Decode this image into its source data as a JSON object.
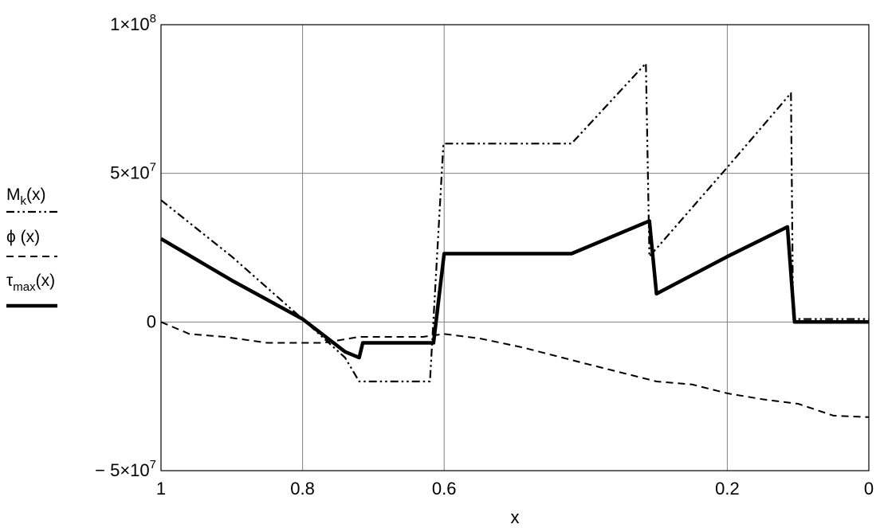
{
  "chart_data": {
    "type": "line",
    "xlabel": "x",
    "xlim": [
      1,
      0
    ],
    "ylim": [
      -50000000,
      100000000
    ],
    "grid": true,
    "legend_position": "left",
    "x_ticks": [
      {
        "value": 1,
        "label": "1"
      },
      {
        "value": 0.8,
        "label": "0.8"
      },
      {
        "value": 0.6,
        "label": "0.6"
      },
      {
        "value": 0.2,
        "label": "0.2"
      },
      {
        "value": 0,
        "label": "0"
      }
    ],
    "x_gridlines": [
      1,
      0.8,
      0.6,
      0.2,
      0
    ],
    "y_ticks": [
      {
        "value": 100000000,
        "mantissa": "1×10",
        "exp": "8"
      },
      {
        "value": 50000000,
        "mantissa": "5×10",
        "exp": "7"
      },
      {
        "value": 0,
        "mantissa": "0",
        "exp": ""
      },
      {
        "value": -50000000,
        "mantissa": "− 5×10",
        "exp": "7"
      }
    ],
    "series": [
      {
        "name": "Mk(x)",
        "label_main": "M",
        "label_sub": "k",
        "label_tail": "(x)",
        "style": "dashdotdot",
        "color": "#000000",
        "points": [
          [
            1.0,
            41000000
          ],
          [
            0.9,
            22000000
          ],
          [
            0.8,
            1000000
          ],
          [
            0.74,
            -12000000
          ],
          [
            0.72,
            -20000000
          ],
          [
            0.62,
            -20000000
          ],
          [
            0.601,
            60000000
          ],
          [
            0.42,
            60000000
          ],
          [
            0.315,
            87000000
          ],
          [
            0.31,
            22000000
          ],
          [
            0.2,
            52000000
          ],
          [
            0.11,
            77000000
          ],
          [
            0.107,
            1000000
          ],
          [
            0.0,
            1000000
          ]
        ]
      },
      {
        "name": "ϕ (x)",
        "label_main": "ϕ (x)",
        "label_sub": "",
        "label_tail": "",
        "style": "dashed",
        "color": "#000000",
        "points": [
          [
            1.0,
            0
          ],
          [
            0.96,
            -4000000
          ],
          [
            0.91,
            -5000000
          ],
          [
            0.85,
            -7000000
          ],
          [
            0.77,
            -7000000
          ],
          [
            0.72,
            -5000000
          ],
          [
            0.63,
            -5000000
          ],
          [
            0.6,
            -4000000
          ],
          [
            0.55,
            -5500000
          ],
          [
            0.49,
            -8500000
          ],
          [
            0.4,
            -14000000
          ],
          [
            0.3,
            -20000000
          ],
          [
            0.25,
            -21000000
          ],
          [
            0.2,
            -24000000
          ],
          [
            0.15,
            -26000000
          ],
          [
            0.1,
            -27500000
          ],
          [
            0.05,
            -31500000
          ],
          [
            0.0,
            -32000000
          ]
        ]
      },
      {
        "name": "τ max(x)",
        "label_main": "τ",
        "label_sub": "max",
        "label_tail": "(x)",
        "style": "solid",
        "color": "#000000",
        "points": [
          [
            1.0,
            28000000
          ],
          [
            0.9,
            14000000
          ],
          [
            0.8,
            1000000
          ],
          [
            0.74,
            -10000000
          ],
          [
            0.72,
            -12000000
          ],
          [
            0.715,
            -7000000
          ],
          [
            0.63,
            -7000000
          ],
          [
            0.615,
            -7000000
          ],
          [
            0.6,
            23000000
          ],
          [
            0.42,
            23000000
          ],
          [
            0.31,
            34000000
          ],
          [
            0.3,
            9500000
          ],
          [
            0.2,
            22000000
          ],
          [
            0.115,
            32000000
          ],
          [
            0.105,
            0
          ],
          [
            0.0,
            0
          ]
        ]
      }
    ]
  }
}
